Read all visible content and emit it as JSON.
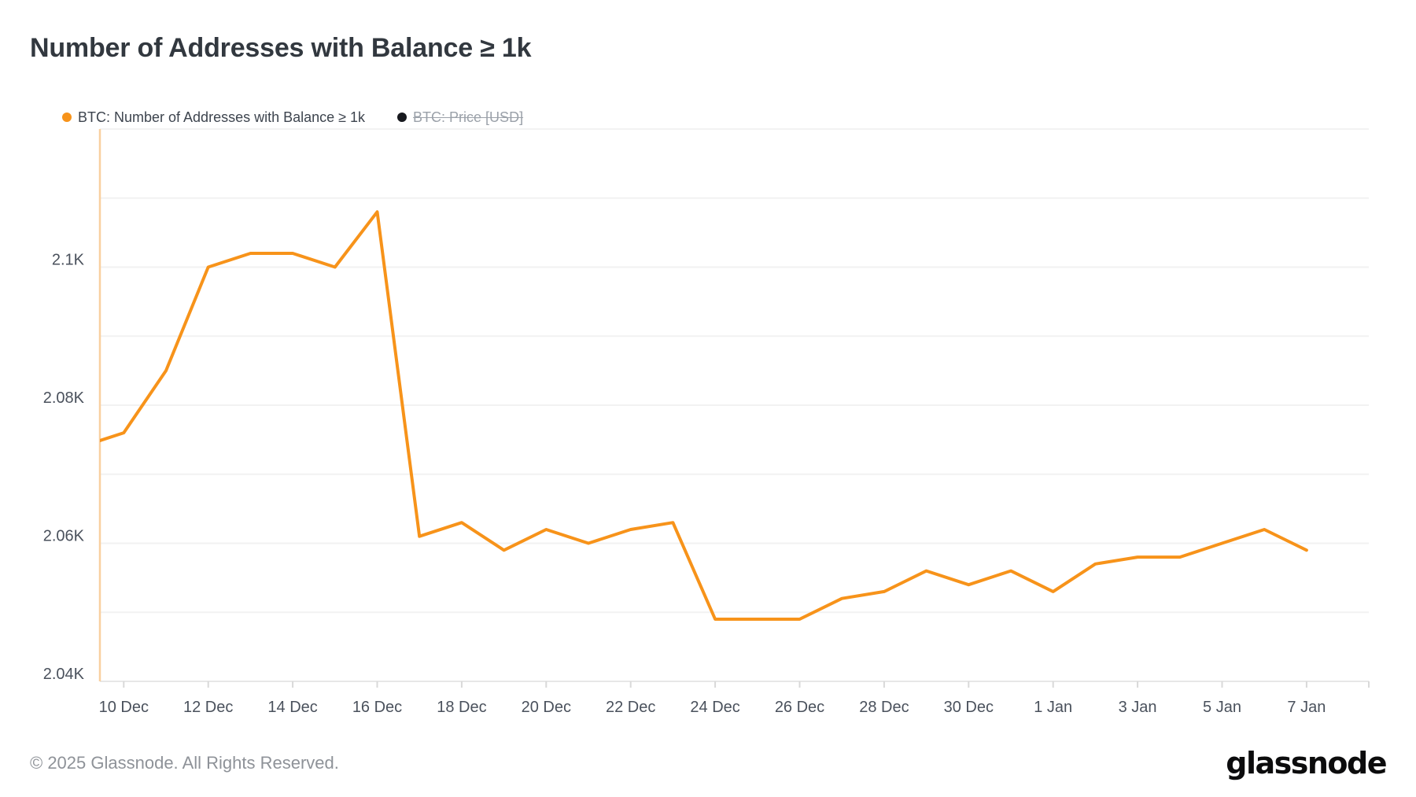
{
  "title": "Number of Addresses with Balance ≥ 1k",
  "legend": {
    "series1": {
      "label": "BTC: Number of Addresses with Balance ≥ 1k",
      "color": "#f7931a",
      "enabled": true
    },
    "series2": {
      "label": "BTC: Price [USD]",
      "color": "#17191e",
      "enabled": false
    }
  },
  "footer": {
    "copyright": "© 2025 Glassnode. All Rights Reserved.",
    "brand": "glassnode"
  },
  "chart_data": {
    "type": "line",
    "title": "Number of Addresses with Balance ≥ 1k",
    "series_name": "BTC: Number of Addresses with Balance ≥ 1k",
    "line_color": "#f7931a",
    "grid": true,
    "legend_position": "top-left",
    "ylabel": "",
    "xlabel": "",
    "ylim_k": [
      2.04,
      2.12
    ],
    "x": [
      "9 Dec",
      "10 Dec",
      "11 Dec",
      "12 Dec",
      "13 Dec",
      "14 Dec",
      "15 Dec",
      "16 Dec",
      "17 Dec",
      "18 Dec",
      "19 Dec",
      "20 Dec",
      "21 Dec",
      "22 Dec",
      "23 Dec",
      "24 Dec",
      "25 Dec",
      "26 Dec",
      "27 Dec",
      "28 Dec",
      "29 Dec",
      "30 Dec",
      "31 Dec",
      "1 Jan",
      "2 Jan",
      "3 Jan",
      "4 Jan",
      "5 Jan",
      "6 Jan",
      "7 Jan"
    ],
    "values_k": [
      2.074,
      2.076,
      2.085,
      2.1,
      2.102,
      2.102,
      2.1,
      2.108,
      2.061,
      2.063,
      2.059,
      2.062,
      2.06,
      2.062,
      2.063,
      2.049,
      2.049,
      2.049,
      2.052,
      2.053,
      2.056,
      2.054,
      2.056,
      2.053,
      2.057,
      2.058,
      2.058,
      2.06,
      2.062,
      2.059
    ],
    "x_tick_labels": [
      "10 Dec",
      "12 Dec",
      "14 Dec",
      "16 Dec",
      "18 Dec",
      "20 Dec",
      "22 Dec",
      "24 Dec",
      "26 Dec",
      "28 Dec",
      "30 Dec",
      "1 Jan",
      "3 Jan",
      "5 Jan",
      "7 Jan"
    ],
    "y_ticks": [
      {
        "value": 2.04,
        "label": "2.04K"
      },
      {
        "value": 2.06,
        "label": "2.06K"
      },
      {
        "value": 2.08,
        "label": "2.08K"
      },
      {
        "value": 2.1,
        "label": "2.1K"
      }
    ],
    "colors": {
      "grid_line": "#f2f2f2",
      "y_axis_line": "#f9d0a0",
      "x_axis_line": "#e7e7e7",
      "tick_mark": "#d9d9d9",
      "axis_label": "#4a515c"
    }
  }
}
